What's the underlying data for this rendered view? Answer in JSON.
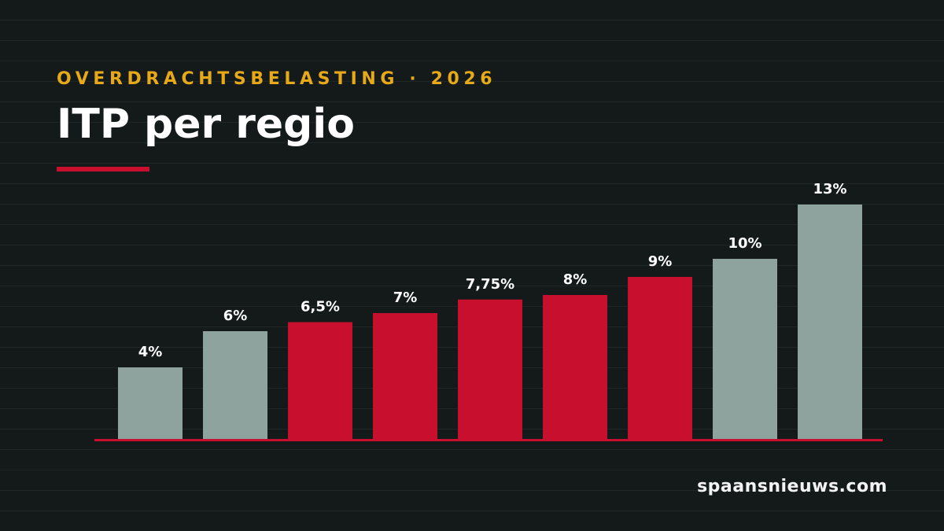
{
  "header": {
    "kicker": "OVERDRACHTSBELASTING · 2026",
    "title": "ITP per regio"
  },
  "footer": {
    "brand": "spaansnieuws.com"
  },
  "colors": {
    "background": "#141a1a",
    "kicker": "#e8a919",
    "accent_red": "#c8102e",
    "neutral_gray": "#8fa39e",
    "text": "#ffffff"
  },
  "chart_data": {
    "type": "bar",
    "title": "ITP per regio",
    "subtitle": "OVERDRACHTSBELASTING · 2026",
    "xlabel": "",
    "ylabel": "",
    "ylim": [
      0,
      13
    ],
    "grid": false,
    "legend": "none",
    "values": [
      4,
      6,
      6.5,
      7,
      7.75,
      8,
      9,
      10,
      13
    ],
    "labels": [
      "4%",
      "6%",
      "6,5%",
      "7%",
      "7,75%",
      "8%",
      "9%",
      "10%",
      "13%"
    ],
    "highlight": [
      false,
      false,
      true,
      true,
      true,
      true,
      true,
      false,
      false
    ]
  }
}
